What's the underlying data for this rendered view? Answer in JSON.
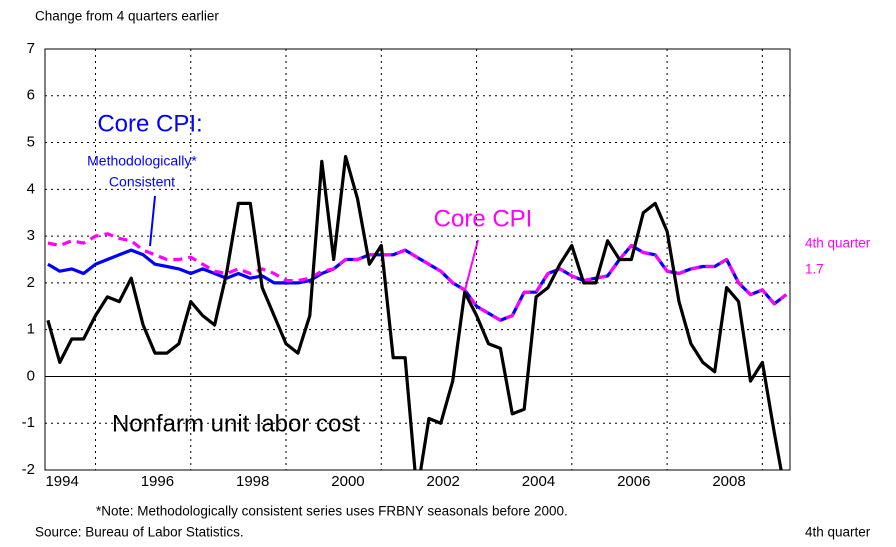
{
  "chart_data": {
    "type": "line",
    "subtitle": "Change from 4 quarters earlier",
    "x": [
      1994,
      1994.25,
      1994.5,
      1994.75,
      1995,
      1995.25,
      1995.5,
      1995.75,
      1996,
      1996.25,
      1996.5,
      1996.75,
      1997,
      1997.25,
      1997.5,
      1997.75,
      1998,
      1998.25,
      1998.5,
      1998.75,
      1999,
      1999.25,
      1999.5,
      1999.75,
      2000,
      2000.25,
      2000.5,
      2000.75,
      2001,
      2001.25,
      2001.5,
      2001.75,
      2002,
      2002.25,
      2002.5,
      2002.75,
      2003,
      2003.25,
      2003.5,
      2003.75,
      2004,
      2004.25,
      2004.5,
      2004.75,
      2005,
      2005.25,
      2005.5,
      2005.75,
      2006,
      2006.25,
      2006.5,
      2006.75,
      2007,
      2007.25,
      2007.5,
      2007.75,
      2008,
      2008.25,
      2008.5,
      2008.75,
      2009,
      2009.25,
      2009.5
    ],
    "series": [
      {
        "name": "Core CPI:",
        "label_lines": [
          "Methodologically*",
          "Consistent"
        ],
        "color": "#0000ff",
        "style": "solid",
        "values": [
          2.4,
          2.25,
          2.3,
          2.2,
          2.4,
          2.5,
          2.6,
          2.7,
          2.6,
          2.4,
          2.35,
          2.3,
          2.2,
          2.3,
          2.2,
          2.1,
          2.2,
          2.1,
          2.15,
          2.0,
          2.0,
          2.0,
          2.05,
          2.2,
          2.3,
          2.5,
          2.5,
          2.6,
          2.6,
          2.6,
          2.7,
          2.55,
          2.4,
          2.25,
          2.0,
          1.85,
          1.5,
          1.35,
          1.2,
          1.3,
          1.8,
          1.8,
          2.2,
          2.3,
          2.15,
          2.05,
          2.1,
          2.15,
          2.5,
          2.8,
          2.65,
          2.6,
          2.25,
          2.2,
          2.3,
          2.35,
          2.35,
          2.5,
          2.0,
          1.75,
          1.85,
          1.55,
          1.75
        ]
      },
      {
        "name": "Core CPI",
        "color": "#ff00ff",
        "style": "dashed",
        "values": [
          2.85,
          2.8,
          2.9,
          2.85,
          3.0,
          3.05,
          2.95,
          2.9,
          2.7,
          2.6,
          2.5,
          2.5,
          2.55,
          2.4,
          2.25,
          2.2,
          2.3,
          2.2,
          2.3,
          2.2,
          2.05,
          2.05,
          2.1,
          2.25,
          2.3,
          2.5,
          2.5,
          2.6,
          2.6,
          2.6,
          2.7,
          2.55,
          2.4,
          2.25,
          2.0,
          1.85,
          1.5,
          1.35,
          1.2,
          1.3,
          1.8,
          1.8,
          2.2,
          2.3,
          2.15,
          2.05,
          2.1,
          2.15,
          2.5,
          2.8,
          2.65,
          2.6,
          2.25,
          2.2,
          2.3,
          2.35,
          2.35,
          2.5,
          2.0,
          1.75,
          1.85,
          1.55,
          1.75
        ]
      },
      {
        "name": "Nonfarm unit labor cost",
        "color": "#000000",
        "style": "solid",
        "values": [
          1.2,
          0.3,
          0.8,
          0.8,
          1.3,
          1.7,
          1.6,
          2.1,
          1.1,
          0.5,
          0.5,
          0.7,
          1.6,
          1.3,
          1.1,
          2.2,
          3.7,
          3.7,
          1.9,
          1.3,
          0.7,
          0.5,
          1.3,
          4.6,
          2.5,
          4.7,
          3.8,
          2.4,
          2.8,
          0.4,
          0.4,
          -2.5,
          -0.9,
          -1.0,
          -0.1,
          1.8,
          1.3,
          0.7,
          0.6,
          -0.8,
          -0.7,
          1.7,
          1.9,
          2.4,
          2.8,
          2.0,
          2.0,
          2.9,
          2.5,
          2.5,
          3.5,
          3.7,
          3.1,
          1.6,
          0.7,
          0.3,
          0.1,
          1.9,
          1.6,
          -0.1,
          0.3,
          -1.2,
          -2.6
        ]
      }
    ],
    "xlim": [
      1993.94,
      2009.58
    ],
    "ylim": [
      -2,
      7
    ],
    "xticks": [
      {
        "value": 1994,
        "label": "1994"
      },
      {
        "value": 1996,
        "label": "1996"
      },
      {
        "value": 1998,
        "label": "1998"
      },
      {
        "value": 2000,
        "label": "2000"
      },
      {
        "value": 2002,
        "label": "2002"
      },
      {
        "value": 2004,
        "label": "2004"
      },
      {
        "value": 2006,
        "label": "2006"
      },
      {
        "value": 2008,
        "label": "2008"
      }
    ],
    "yticks": [
      -2,
      -1,
      0,
      1,
      2,
      3,
      4,
      5,
      6,
      7
    ],
    "grid": true,
    "last_label": {
      "text": "4th quarter",
      "value": 1.7,
      "value_label": "1.7"
    },
    "note": "*Note:  Methodologically consistent series uses FRBNY seasonals before 2000.",
    "source": "Source: Bureau of Labor Statistics.",
    "last_period_label": "4th quarter"
  }
}
